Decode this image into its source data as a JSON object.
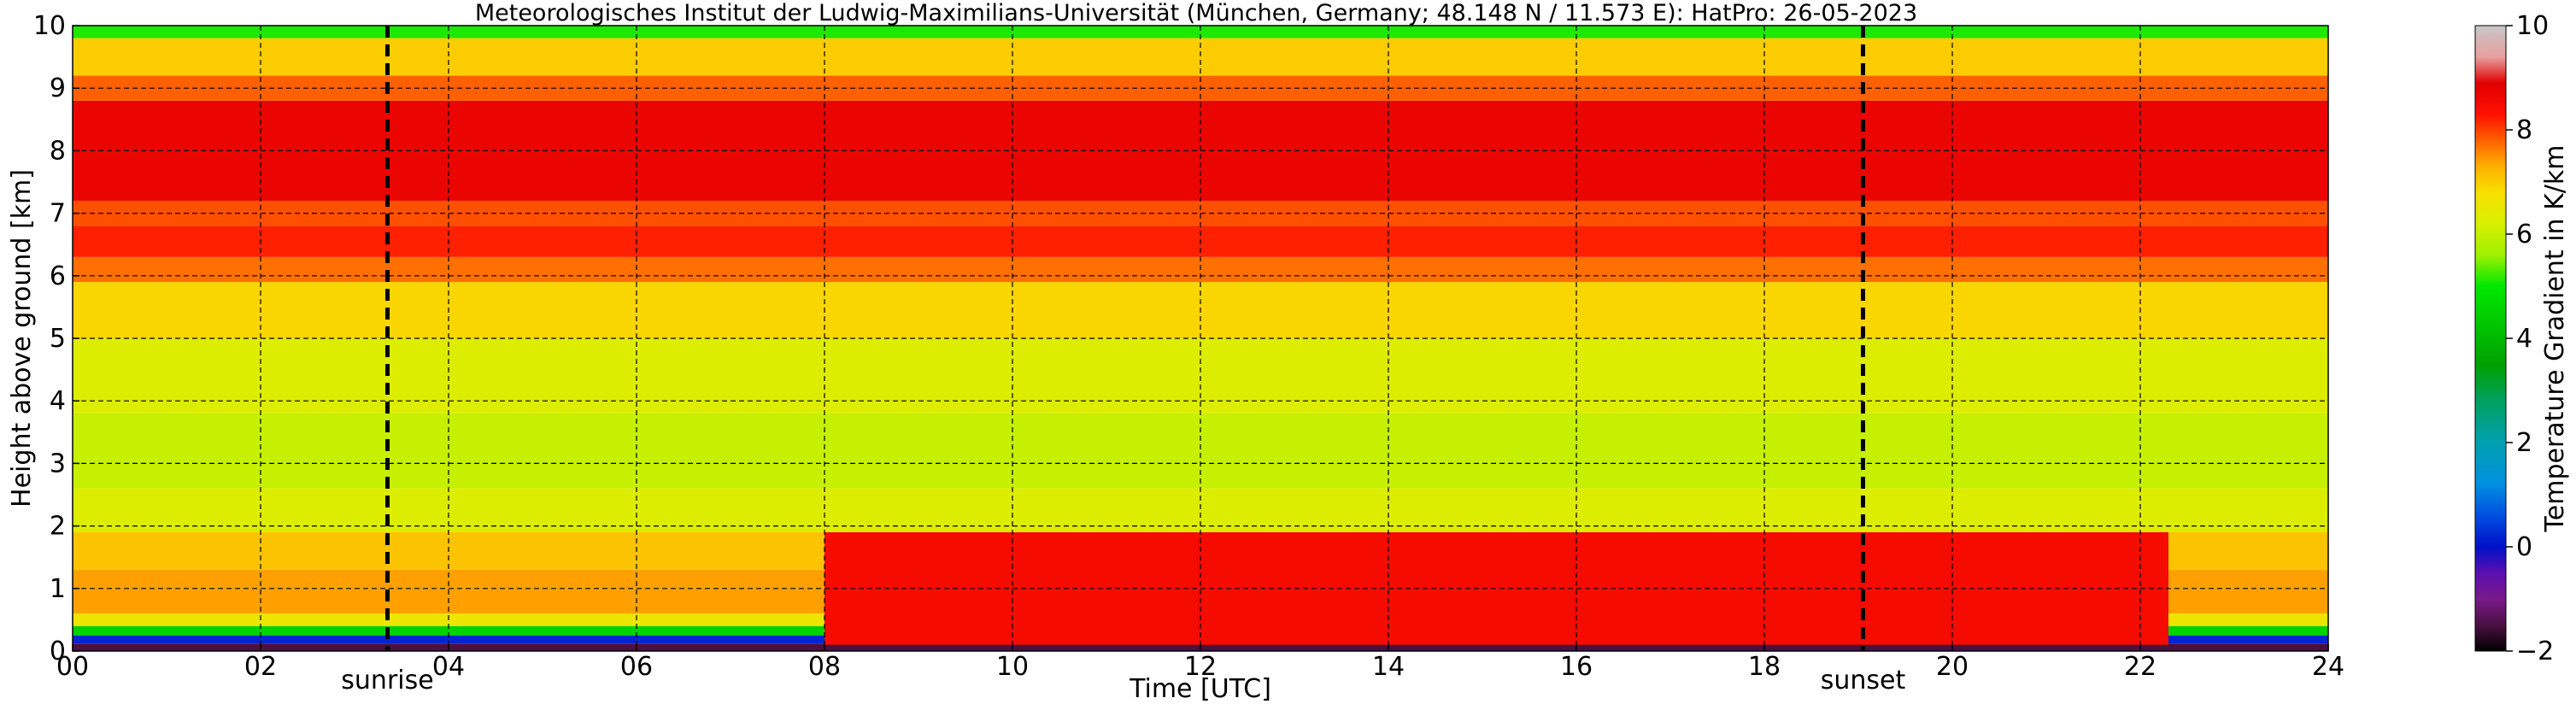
{
  "chart_data": {
    "type": "heatmap",
    "title": "Meteorologisches Institut der Ludwig-Maximilians-Universität (München, Germany; 48.148 N / 11.573 E):    HatPro: 26-05-2023",
    "xlabel": "Time [UTC]",
    "ylabel": "Height above ground [km]",
    "xlim": [
      0,
      24
    ],
    "ylim": [
      0,
      10
    ],
    "x_ticks": [
      {
        "value": 0,
        "label": "00"
      },
      {
        "value": 2,
        "label": "02"
      },
      {
        "value": 4,
        "label": "04"
      },
      {
        "value": 6,
        "label": "06"
      },
      {
        "value": 8,
        "label": "08"
      },
      {
        "value": 10,
        "label": "10"
      },
      {
        "value": 12,
        "label": "12"
      },
      {
        "value": 14,
        "label": "14"
      },
      {
        "value": 16,
        "label": "16"
      },
      {
        "value": 18,
        "label": "18"
      },
      {
        "value": 20,
        "label": "20"
      },
      {
        "value": 22,
        "label": "22"
      },
      {
        "value": 24,
        "label": "24"
      }
    ],
    "y_ticks": [
      0,
      1,
      2,
      3,
      4,
      5,
      6,
      7,
      8,
      9,
      10
    ],
    "grid": true,
    "markers": [
      {
        "name": "sunrise",
        "x": 3.35,
        "label": "sunrise"
      },
      {
        "name": "sunset",
        "x": 19.05,
        "label": "sunset"
      }
    ],
    "colorbar": {
      "label": "Temperature Gradient in K/km",
      "range": [
        -2,
        10
      ],
      "ticks": [
        -2,
        0,
        2,
        4,
        6,
        8,
        10
      ],
      "colors": [
        {
          "value": -2.0,
          "color": "#000000"
        },
        {
          "value": -1.5,
          "color": "#4a1040"
        },
        {
          "value": -1.0,
          "color": "#7a1a8a"
        },
        {
          "value": -0.5,
          "color": "#5a0fb0"
        },
        {
          "value": 0.0,
          "color": "#0010c8"
        },
        {
          "value": 0.6,
          "color": "#0050e0"
        },
        {
          "value": 1.2,
          "color": "#0090e0"
        },
        {
          "value": 2.0,
          "color": "#00a0b0"
        },
        {
          "value": 2.8,
          "color": "#00a060"
        },
        {
          "value": 3.5,
          "color": "#00a000"
        },
        {
          "value": 4.3,
          "color": "#00c800"
        },
        {
          "value": 5.0,
          "color": "#00e800"
        },
        {
          "value": 5.6,
          "color": "#a0f000"
        },
        {
          "value": 6.2,
          "color": "#d8f000"
        },
        {
          "value": 6.8,
          "color": "#f8e000"
        },
        {
          "value": 7.3,
          "color": "#ffb000"
        },
        {
          "value": 7.8,
          "color": "#ff6000"
        },
        {
          "value": 8.3,
          "color": "#ff1000"
        },
        {
          "value": 8.9,
          "color": "#e00000"
        },
        {
          "value": 9.4,
          "color": "#e8a0a0"
        },
        {
          "value": 10.0,
          "color": "#c8c8c8"
        }
      ]
    },
    "field": {
      "description_layers": [
        {
          "h0": 0.0,
          "h1": 0.12,
          "value": -1.5
        },
        {
          "h0": 0.12,
          "h1": 0.25,
          "value": 0.2
        },
        {
          "h0": 0.25,
          "h1": 0.4,
          "value": 4.5
        },
        {
          "h0": 0.4,
          "h1": 0.6,
          "value": 6.6
        },
        {
          "h0": 0.6,
          "h1": 1.3,
          "value": 7.4
        },
        {
          "h0": 1.3,
          "h1": 1.9,
          "value": 7.1
        },
        {
          "h0": 1.9,
          "h1": 2.6,
          "value": 6.3
        },
        {
          "h0": 2.6,
          "h1": 3.8,
          "value": 6.0
        },
        {
          "h0": 3.8,
          "h1": 5.0,
          "value": 6.3
        },
        {
          "h0": 5.0,
          "h1": 5.9,
          "value": 6.9
        },
        {
          "h0": 5.9,
          "h1": 6.3,
          "value": 7.7
        },
        {
          "h0": 6.3,
          "h1": 6.8,
          "value": 8.2
        },
        {
          "h0": 6.8,
          "h1": 7.2,
          "value": 7.9
        },
        {
          "h0": 7.2,
          "h1": 8.8,
          "value": 8.7
        },
        {
          "h0": 8.8,
          "h1": 9.2,
          "value": 7.8
        },
        {
          "h0": 9.2,
          "h1": 9.8,
          "value": 7.0
        },
        {
          "h0": 9.8,
          "h1": 10.0,
          "value": 5.1
        }
      ],
      "daytime_boundary_layer": {
        "x0": 8.0,
        "x1": 22.3,
        "h0": 0.1,
        "h1": 1.9,
        "value": 8.5
      }
    }
  }
}
